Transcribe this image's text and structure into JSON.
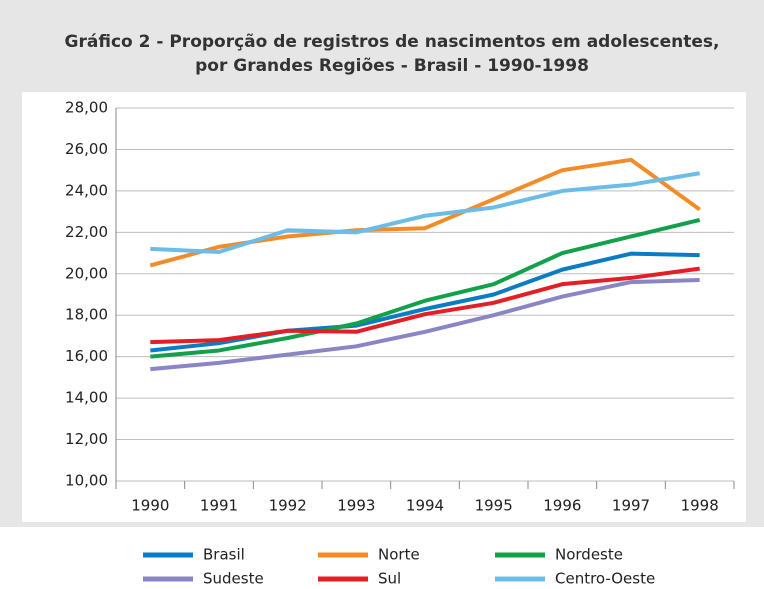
{
  "chart_data": {
    "type": "line",
    "title": [
      "Gráfico 2 - Proporção de registros de nascimentos em adolescentes,",
      "por Grandes Regiões - Brasil - 1990-1998"
    ],
    "categories": [
      "1990",
      "1991",
      "1992",
      "1993",
      "1994",
      "1995",
      "1996",
      "1997",
      "1998"
    ],
    "series": [
      {
        "name": "Brasil",
        "color": "#0a7cc4",
        "values": [
          16.3,
          16.65,
          17.25,
          17.5,
          18.3,
          19.0,
          20.2,
          20.97,
          20.9
        ]
      },
      {
        "name": "Norte",
        "color": "#f28c28",
        "values": [
          20.4,
          21.3,
          21.8,
          22.1,
          22.2,
          23.6,
          25.0,
          25.5,
          23.1
        ]
      },
      {
        "name": "Nordeste",
        "color": "#12a14a",
        "values": [
          16.0,
          16.3,
          16.9,
          17.6,
          18.7,
          19.5,
          21.0,
          21.8,
          22.6
        ]
      },
      {
        "name": "Sudeste",
        "color": "#8a85c4",
        "values": [
          15.4,
          15.7,
          16.1,
          16.5,
          17.2,
          18.0,
          18.9,
          19.6,
          19.7
        ]
      },
      {
        "name": "Sul",
        "color": "#e31e25",
        "values": [
          16.7,
          16.8,
          17.25,
          17.2,
          18.05,
          18.6,
          19.5,
          19.8,
          20.25
        ]
      },
      {
        "name": "Centro-Oeste",
        "color": "#6cbce8",
        "values": [
          21.2,
          21.05,
          22.1,
          22.0,
          22.8,
          23.2,
          24.0,
          24.3,
          24.85
        ]
      }
    ],
    "ylim": [
      10,
      28
    ],
    "yticks": [
      {
        "value": 10,
        "label": "10,00"
      },
      {
        "value": 12,
        "label": "12,00"
      },
      {
        "value": 14,
        "label": "14,00"
      },
      {
        "value": 16,
        "label": "16,00"
      },
      {
        "value": 18,
        "label": "18,00"
      },
      {
        "value": 20,
        "label": "20,00"
      },
      {
        "value": 22,
        "label": "22,00"
      },
      {
        "value": 24,
        "label": "24,00"
      },
      {
        "value": 26,
        "label": "26,00"
      },
      {
        "value": 28,
        "label": "28,00"
      }
    ],
    "grid": true
  }
}
